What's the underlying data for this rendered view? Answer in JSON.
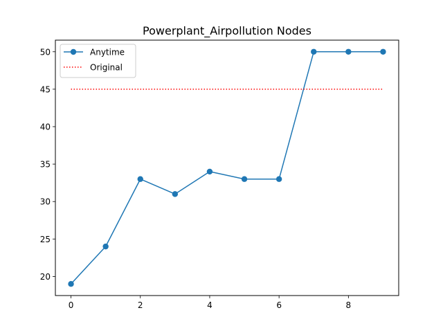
{
  "chart_data": {
    "type": "line",
    "title": "Powerplant_Airpollution Nodes",
    "xlabel": "",
    "ylabel": "",
    "xlim": [
      -0.45,
      9.45
    ],
    "ylim": [
      17.45,
      51.55
    ],
    "xticks": [
      0,
      2,
      4,
      6,
      8
    ],
    "xtick_labels": [
      "0",
      "2",
      "4",
      "6",
      "8"
    ],
    "yticks": [
      20,
      25,
      30,
      35,
      40,
      45,
      50
    ],
    "ytick_labels": [
      "20",
      "25",
      "30",
      "35",
      "40",
      "45",
      "50"
    ],
    "grid": false,
    "legend_placement": "upper-left",
    "series": [
      {
        "name": "Anytime",
        "style": "solid-line-with-circle-markers",
        "color": "#1f77b4",
        "x": [
          0,
          1,
          2,
          3,
          4,
          5,
          6,
          7,
          8,
          9
        ],
        "values": [
          19,
          24,
          33,
          31,
          34,
          33,
          33,
          50,
          50,
          50
        ]
      },
      {
        "name": "Original",
        "style": "dotted-line",
        "color": "#ff0000",
        "x": [
          0,
          9
        ],
        "values": [
          45,
          45
        ]
      }
    ]
  }
}
